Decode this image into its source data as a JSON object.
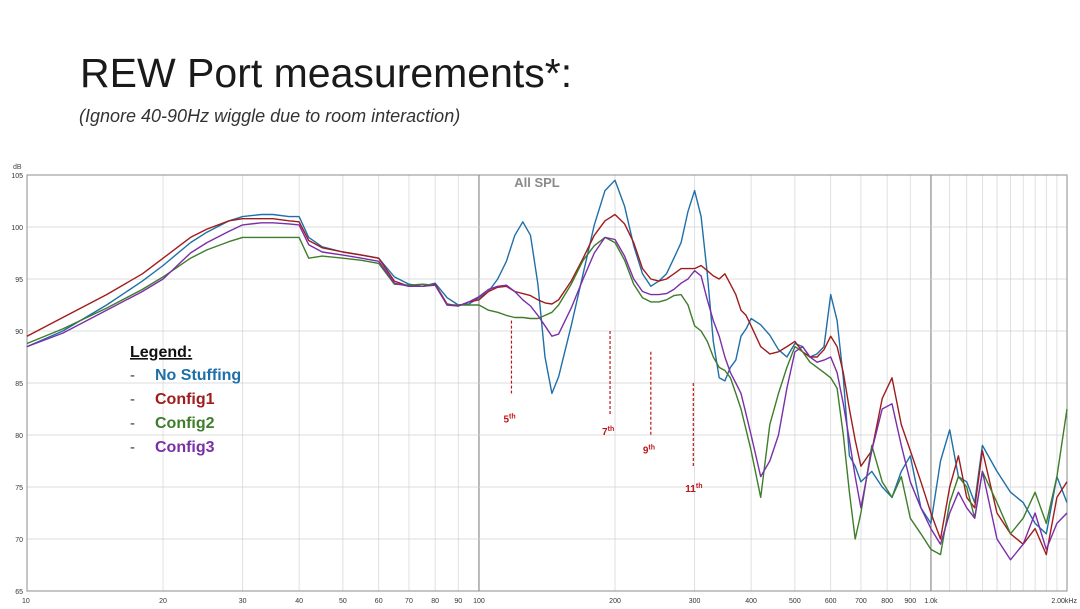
{
  "title": "REW Port measurements*:",
  "subtitle": "(Ignore 40-90Hz wiggle due to room interaction)",
  "chart_data": {
    "type": "line",
    "title": "All SPL",
    "xscale": "log",
    "xlim": [
      10,
      2000
    ],
    "ylim": [
      65,
      105
    ],
    "ylabel": "dB",
    "grid": true,
    "x_ticks": [
      10,
      20,
      30,
      40,
      50,
      60,
      70,
      80,
      90,
      100,
      200,
      300,
      400,
      500,
      600,
      700,
      800,
      900,
      1000,
      2000
    ],
    "x_tick_labels": [
      "10",
      "20",
      "30",
      "40",
      "50",
      "60",
      "70",
      "80",
      "90",
      "100",
      "200",
      "300",
      "400",
      "500",
      "600",
      "700",
      "800",
      "900",
      "1.0k",
      "2.00kHz"
    ],
    "y_ticks": [
      65,
      70,
      75,
      80,
      85,
      90,
      95,
      100,
      105
    ],
    "y_tick_labels": [
      "65",
      "70",
      "75",
      "80",
      "85",
      "90",
      "95",
      "100",
      "105"
    ],
    "legend": {
      "heading": "Legend:",
      "placement": "left",
      "dash": "-"
    },
    "series": [
      {
        "name": "No Stuffing",
        "color": "#1f6fa8",
        "x": [
          10,
          12,
          15,
          18,
          20,
          23,
          25,
          28,
          30,
          33,
          35,
          38,
          40,
          42,
          45,
          50,
          55,
          60,
          65,
          70,
          75,
          80,
          85,
          90,
          95,
          100,
          105,
          110,
          115,
          120,
          125,
          130,
          135,
          140,
          145,
          150,
          160,
          170,
          180,
          190,
          200,
          210,
          220,
          230,
          240,
          250,
          260,
          270,
          280,
          290,
          300,
          310,
          320,
          330,
          340,
          350,
          360,
          370,
          380,
          390,
          400,
          420,
          440,
          460,
          480,
          500,
          520,
          540,
          560,
          580,
          600,
          620,
          640,
          660,
          680,
          700,
          740,
          780,
          820,
          860,
          900,
          950,
          1000,
          1050,
          1100,
          1150,
          1200,
          1250,
          1300,
          1400,
          1500,
          1600,
          1700,
          1800,
          1900,
          2000
        ],
        "values": [
          88.5,
          90.0,
          92.5,
          94.8,
          96.3,
          98.5,
          99.5,
          100.6,
          101.0,
          101.2,
          101.2,
          101.0,
          101.0,
          99.0,
          98.1,
          97.6,
          97.3,
          97.0,
          95.2,
          94.5,
          94.3,
          94.6,
          93.2,
          92.5,
          92.6,
          93.2,
          93.8,
          95.0,
          96.7,
          99.2,
          100.5,
          99.2,
          94.5,
          87.5,
          84.0,
          85.6,
          90.5,
          95.5,
          100.2,
          103.5,
          104.5,
          102.0,
          98.2,
          95.5,
          94.3,
          94.8,
          95.5,
          97.0,
          98.5,
          101.5,
          103.5,
          101.0,
          95.5,
          89.0,
          85.5,
          85.2,
          86.5,
          87.2,
          89.5,
          90.2,
          91.2,
          90.6,
          89.6,
          88.2,
          87.5,
          88.8,
          88.5,
          87.5,
          87.8,
          88.5,
          93.5,
          91.0,
          85.5,
          78.0,
          77.0,
          75.5,
          76.5,
          75.0,
          74.0,
          76.5,
          78.0,
          73.0,
          71.5,
          77.5,
          80.5,
          76.0,
          75.5,
          73.5,
          79.0,
          76.5,
          74.5,
          73.5,
          71.5,
          70.5,
          76.0,
          73.5
        ]
      },
      {
        "name": "Config1",
        "color": "#a01c1c",
        "x": [
          10,
          12,
          15,
          18,
          20,
          23,
          25,
          28,
          30,
          33,
          35,
          38,
          40,
          42,
          45,
          50,
          55,
          60,
          65,
          70,
          75,
          80,
          85,
          90,
          95,
          100,
          105,
          110,
          115,
          120,
          125,
          130,
          135,
          140,
          145,
          150,
          160,
          170,
          180,
          190,
          200,
          210,
          220,
          230,
          240,
          250,
          260,
          270,
          280,
          290,
          300,
          310,
          320,
          330,
          340,
          350,
          360,
          370,
          380,
          390,
          400,
          420,
          440,
          460,
          480,
          500,
          520,
          540,
          560,
          580,
          600,
          620,
          640,
          660,
          680,
          700,
          740,
          780,
          820,
          860,
          900,
          950,
          1000,
          1050,
          1100,
          1150,
          1200,
          1250,
          1300,
          1400,
          1500,
          1600,
          1700,
          1800,
          1900,
          2000
        ],
        "values": [
          89.5,
          91.3,
          93.5,
          95.5,
          97.0,
          99.0,
          99.8,
          100.6,
          100.8,
          100.8,
          100.8,
          100.6,
          100.5,
          98.7,
          98.0,
          97.6,
          97.3,
          97.0,
          94.8,
          94.3,
          94.3,
          94.5,
          92.6,
          92.4,
          92.8,
          93.0,
          93.8,
          94.2,
          94.3,
          93.8,
          93.6,
          93.4,
          93.0,
          92.7,
          92.6,
          93.0,
          94.8,
          97.0,
          99.2,
          100.6,
          101.2,
          100.3,
          98.5,
          96.0,
          95.0,
          94.8,
          95.0,
          95.5,
          96.0,
          96.0,
          96.0,
          96.3,
          95.8,
          95.3,
          95.0,
          95.5,
          94.5,
          93.5,
          92.0,
          91.5,
          90.5,
          88.5,
          87.8,
          88.0,
          88.5,
          89.0,
          88.0,
          87.5,
          87.5,
          88.2,
          89.5,
          88.5,
          86.0,
          82.5,
          79.5,
          77.0,
          78.5,
          83.5,
          85.5,
          81.0,
          78.5,
          75.5,
          72.5,
          70.0,
          75.0,
          78.0,
          74.0,
          73.0,
          78.5,
          72.5,
          70.5,
          69.5,
          71.0,
          68.5,
          74.0,
          75.5
        ]
      },
      {
        "name": "Config2",
        "color": "#3e7d2a",
        "x": [
          10,
          12,
          15,
          18,
          20,
          23,
          25,
          28,
          30,
          33,
          35,
          38,
          40,
          42,
          45,
          50,
          55,
          60,
          65,
          70,
          75,
          80,
          85,
          90,
          95,
          100,
          105,
          110,
          115,
          120,
          125,
          130,
          135,
          140,
          145,
          150,
          160,
          170,
          180,
          190,
          200,
          210,
          220,
          230,
          240,
          250,
          260,
          270,
          280,
          290,
          300,
          310,
          320,
          330,
          340,
          350,
          360,
          370,
          380,
          390,
          400,
          420,
          440,
          460,
          480,
          500,
          520,
          540,
          560,
          580,
          600,
          620,
          640,
          660,
          680,
          700,
          740,
          780,
          820,
          860,
          900,
          950,
          1000,
          1050,
          1100,
          1150,
          1200,
          1250,
          1300,
          1400,
          1500,
          1600,
          1700,
          1800,
          1900,
          2000
        ],
        "values": [
          88.8,
          90.2,
          92.2,
          94.0,
          95.2,
          97.0,
          97.8,
          98.6,
          99.0,
          99.0,
          99.0,
          99.0,
          99.0,
          97.0,
          97.2,
          97.0,
          96.8,
          96.5,
          94.5,
          94.4,
          94.5,
          94.4,
          92.5,
          92.5,
          92.5,
          92.5,
          92.0,
          91.8,
          91.5,
          91.3,
          91.3,
          91.2,
          91.2,
          91.5,
          91.8,
          92.5,
          94.5,
          96.8,
          98.2,
          99.0,
          98.5,
          96.8,
          94.5,
          93.2,
          92.8,
          92.8,
          93.0,
          93.4,
          93.5,
          92.5,
          90.5,
          90.0,
          89.0,
          87.5,
          86.5,
          86.2,
          85.5,
          84.0,
          82.5,
          80.5,
          78.5,
          74.0,
          81.0,
          84.0,
          86.5,
          88.5,
          88.0,
          87.0,
          86.5,
          86.0,
          85.5,
          84.5,
          80.0,
          74.5,
          70.0,
          72.5,
          79.0,
          75.5,
          74.0,
          76.0,
          72.0,
          70.5,
          69.0,
          68.5,
          73.5,
          76.0,
          75.0,
          72.0,
          76.5,
          73.5,
          70.5,
          72.0,
          74.5,
          71.5,
          76.0,
          82.5
        ]
      },
      {
        "name": "Config3",
        "color": "#7a2fa8",
        "x": [
          10,
          12,
          15,
          18,
          20,
          23,
          25,
          28,
          30,
          33,
          35,
          38,
          40,
          42,
          45,
          50,
          55,
          60,
          65,
          70,
          75,
          80,
          85,
          90,
          95,
          100,
          105,
          110,
          115,
          120,
          125,
          130,
          135,
          140,
          145,
          150,
          160,
          170,
          180,
          190,
          200,
          210,
          220,
          230,
          240,
          250,
          260,
          270,
          280,
          290,
          300,
          310,
          320,
          330,
          340,
          350,
          360,
          370,
          380,
          390,
          400,
          420,
          440,
          460,
          480,
          500,
          520,
          540,
          560,
          580,
          600,
          620,
          640,
          660,
          680,
          700,
          740,
          780,
          820,
          860,
          900,
          950,
          1000,
          1050,
          1100,
          1150,
          1200,
          1250,
          1300,
          1400,
          1500,
          1600,
          1700,
          1800,
          1900,
          2000
        ],
        "values": [
          88.5,
          89.8,
          92.0,
          93.8,
          95.0,
          97.5,
          98.5,
          99.6,
          100.2,
          100.4,
          100.4,
          100.3,
          100.2,
          98.3,
          97.6,
          97.3,
          97.0,
          96.7,
          94.6,
          94.3,
          94.3,
          94.4,
          92.5,
          92.4,
          92.8,
          93.3,
          94.0,
          94.3,
          94.4,
          93.8,
          93.0,
          92.4,
          91.5,
          90.5,
          89.5,
          89.7,
          92.2,
          95.0,
          97.5,
          99.0,
          98.8,
          97.2,
          95.0,
          93.8,
          93.5,
          93.5,
          93.6,
          94.0,
          94.6,
          95.0,
          95.8,
          95.3,
          93.0,
          91.0,
          89.5,
          87.5,
          86.0,
          85.0,
          84.0,
          82.0,
          80.0,
          76.0,
          77.5,
          80.0,
          84.5,
          88.0,
          88.5,
          87.5,
          87.0,
          87.2,
          87.5,
          86.0,
          83.0,
          79.5,
          76.0,
          73.0,
          78.5,
          82.5,
          83.0,
          79.0,
          75.5,
          73.0,
          71.0,
          69.5,
          72.5,
          74.5,
          73.0,
          72.0,
          76.5,
          70.0,
          68.0,
          69.5,
          72.5,
          69.0,
          71.5,
          72.5
        ]
      }
    ],
    "annotations": [
      {
        "x": 118,
        "y": 81.2,
        "label": "5",
        "sup": "th",
        "line_from": 91,
        "line_to": 84,
        "color": "#c0141c"
      },
      {
        "x": 195,
        "y": 80.0,
        "label": "7",
        "sup": "th",
        "line_from": 90,
        "line_to": 82,
        "color": "#c0141c"
      },
      {
        "x": 240,
        "y": 78.2,
        "label": "9",
        "sup": "th",
        "line_from": 88,
        "line_to": 80,
        "color": "#c0141c"
      },
      {
        "x": 298,
        "y": 74.5,
        "label": "11",
        "sup": "th",
        "line_from": 85,
        "line_to": 77,
        "color": "#c0141c"
      }
    ]
  }
}
